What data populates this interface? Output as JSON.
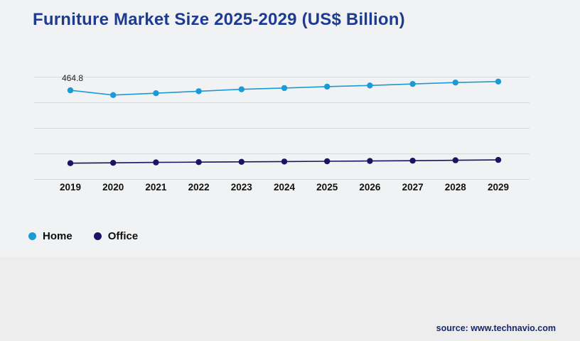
{
  "page": {
    "title": "Furniture Market Size 2025-2029 (US$ Billion)",
    "source": "source: www.technavio.com"
  },
  "chart_data": {
    "type": "line",
    "title": "Furniture Market Size 2025-2029 (US$ Billion)",
    "categories": [
      "2019",
      "2020",
      "2021",
      "2022",
      "2023",
      "2024",
      "2025",
      "2026",
      "2027",
      "2028",
      "2029"
    ],
    "series": [
      {
        "name": "Home",
        "color": "#1b9ad6",
        "values": [
          464.8,
          440.0,
          449.5,
          460.0,
          470.0,
          476.5,
          484.0,
          490.0,
          497.5,
          505.0,
          510.0
        ]
      },
      {
        "name": "Office",
        "color": "#1b1464",
        "values": [
          86.0,
          88.0,
          90.0,
          91.5,
          93.0,
          94.5,
          96.0,
          97.5,
          99.0,
          101.0,
          103.0
        ]
      }
    ],
    "annotations": [
      {
        "series": "Home",
        "x": "2019",
        "text": "464.8"
      }
    ],
    "xlabel": "",
    "ylabel": "",
    "ylim": [
      0,
      550
    ],
    "grid": true,
    "legend_position": "bottom-left"
  }
}
